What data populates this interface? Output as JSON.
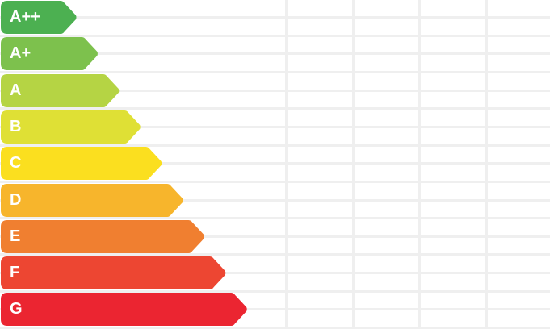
{
  "classes": [
    {
      "label": "A++",
      "color": "#4cb051"
    },
    {
      "label": "A+",
      "color": "#7dc14d"
    },
    {
      "label": "A",
      "color": "#b5d444"
    },
    {
      "label": "B",
      "color": "#dfe035"
    },
    {
      "label": "C",
      "color": "#fbdf1f"
    },
    {
      "label": "D",
      "color": "#f7b52c"
    },
    {
      "label": "E",
      "color": "#f07f30"
    },
    {
      "label": "F",
      "color": "#ed4632"
    },
    {
      "label": "G",
      "color": "#eb2531"
    }
  ],
  "grid_color": "#efefef"
}
